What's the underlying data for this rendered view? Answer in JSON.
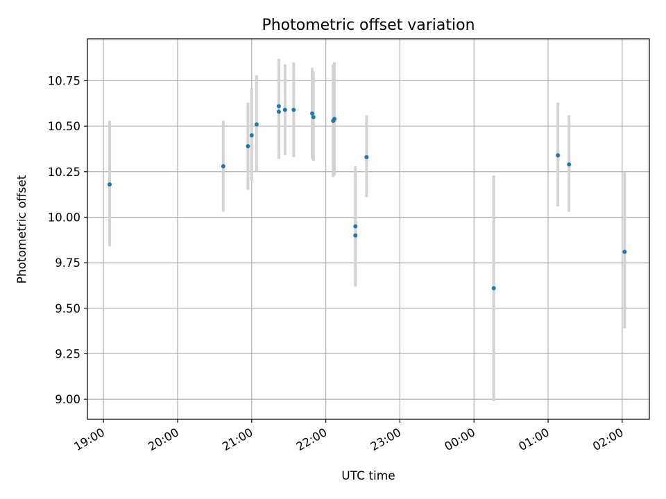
{
  "chart_data": {
    "type": "scatter",
    "title": "Photometric offset variation",
    "xlabel": "UTC time",
    "ylabel": "Photometric offset",
    "x_unit": "time",
    "xlim": [
      "18:47",
      "02:22+1"
    ],
    "ylim": [
      8.89,
      10.98
    ],
    "grid": true,
    "x_ticks": [
      "19:00",
      "20:00",
      "21:00",
      "22:00",
      "23:00",
      "00:00",
      "01:00",
      "02:00"
    ],
    "y_ticks": [
      "9.00",
      "9.25",
      "9.50",
      "9.75",
      "10.00",
      "10.25",
      "10.50",
      "10.75"
    ],
    "points": [
      {
        "x": "19:05",
        "y": 10.18,
        "err_low": 9.84,
        "err_high": 10.53
      },
      {
        "x": "20:37",
        "y": 10.28,
        "err_low": 10.03,
        "err_high": 10.53
      },
      {
        "x": "20:57",
        "y": 10.39,
        "err_low": 10.15,
        "err_high": 10.63
      },
      {
        "x": "21:00",
        "y": 10.45,
        "err_low": 10.2,
        "err_high": 10.71
      },
      {
        "x": "21:04",
        "y": 10.51,
        "err_low": 10.25,
        "err_high": 10.78
      },
      {
        "x": "21:22",
        "y": 10.61,
        "err_low": 10.37,
        "err_high": 10.87
      },
      {
        "x": "21:22",
        "y": 10.58,
        "err_low": 10.32,
        "err_high": 10.84
      },
      {
        "x": "21:27",
        "y": 10.59,
        "err_low": 10.34,
        "err_high": 10.84
      },
      {
        "x": "21:34",
        "y": 10.59,
        "err_low": 10.33,
        "err_high": 10.85
      },
      {
        "x": "21:49",
        "y": 10.57,
        "err_low": 10.32,
        "err_high": 10.82
      },
      {
        "x": "21:50",
        "y": 10.55,
        "err_low": 10.31,
        "err_high": 10.8
      },
      {
        "x": "22:06",
        "y": 10.53,
        "err_low": 10.22,
        "err_high": 10.84
      },
      {
        "x": "22:07",
        "y": 10.54,
        "err_low": 10.23,
        "err_high": 10.85
      },
      {
        "x": "22:24",
        "y": 9.95,
        "err_low": 9.62,
        "err_high": 10.28
      },
      {
        "x": "22:24",
        "y": 9.9,
        "err_low": 9.62,
        "err_high": 10.2
      },
      {
        "x": "22:33",
        "y": 10.33,
        "err_low": 10.11,
        "err_high": 10.56
      },
      {
        "x": "00:16",
        "y": 9.61,
        "err_low": 8.99,
        "err_high": 10.23
      },
      {
        "x": "01:08",
        "y": 10.34,
        "err_low": 10.06,
        "err_high": 10.63
      },
      {
        "x": "01:17",
        "y": 10.29,
        "err_low": 10.03,
        "err_high": 10.56
      },
      {
        "x": "02:02",
        "y": 9.81,
        "err_low": 9.39,
        "err_high": 10.25
      }
    ],
    "colors": {
      "points": "#1f77b4",
      "errorbars": "#d3d3d3",
      "grid": "#b0b0b0",
      "axes": "#000000"
    }
  }
}
